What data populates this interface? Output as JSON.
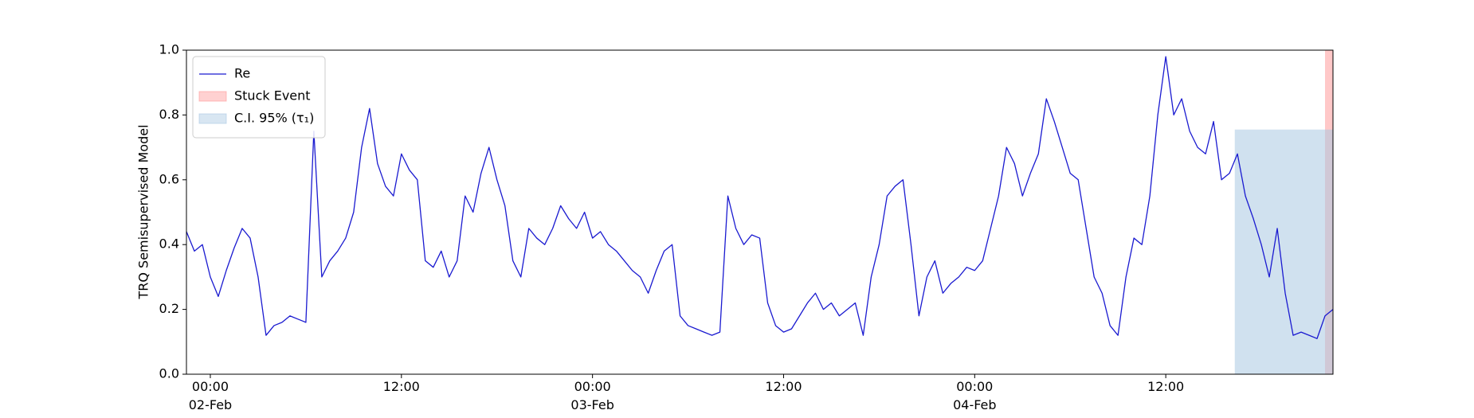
{
  "chart_data": {
    "type": "line",
    "y_label": "TRQ Semisupervised Model",
    "x": [
      "1900-02-01 22:30",
      "1900-02-01 23:00",
      "1900-02-01 23:30",
      "1900-02-02 00:00",
      "1900-02-02 00:30",
      "1900-02-02 01:00",
      "1900-02-02 01:30",
      "1900-02-02 02:00",
      "1900-02-02 02:30",
      "1900-02-02 03:00",
      "1900-02-02 03:30",
      "1900-02-02 04:00",
      "1900-02-02 04:30",
      "1900-02-02 05:00",
      "1900-02-02 05:30",
      "1900-02-02 06:00",
      "1900-02-02 06:30",
      "1900-02-02 07:00",
      "1900-02-02 07:30",
      "1900-02-02 08:00",
      "1900-02-02 08:30",
      "1900-02-02 09:00",
      "1900-02-02 09:30",
      "1900-02-02 10:00",
      "1900-02-02 10:30",
      "1900-02-02 11:00",
      "1900-02-02 11:30",
      "1900-02-02 12:00",
      "1900-02-02 12:30",
      "1900-02-02 13:00",
      "1900-02-02 13:30",
      "1900-02-02 14:00",
      "1900-02-02 14:30",
      "1900-02-02 15:00",
      "1900-02-02 15:30",
      "1900-02-02 16:00",
      "1900-02-02 16:30",
      "1900-02-02 17:00",
      "1900-02-02 17:30",
      "1900-02-02 18:00",
      "1900-02-02 18:30",
      "1900-02-02 19:00",
      "1900-02-02 19:30",
      "1900-02-02 20:00",
      "1900-02-02 20:30",
      "1900-02-02 21:00",
      "1900-02-02 21:30",
      "1900-02-02 22:00",
      "1900-02-02 22:30",
      "1900-02-02 23:00",
      "1900-02-02 23:30",
      "1900-02-03 00:00",
      "1900-02-03 00:30",
      "1900-02-03 01:00",
      "1900-02-03 01:30",
      "1900-02-03 02:00",
      "1900-02-03 02:30",
      "1900-02-03 03:00",
      "1900-02-03 03:30",
      "1900-02-03 04:00",
      "1900-02-03 04:30",
      "1900-02-03 05:00",
      "1900-02-03 05:30",
      "1900-02-03 06:00",
      "1900-02-03 06:30",
      "1900-02-03 07:00",
      "1900-02-03 07:30",
      "1900-02-03 08:00",
      "1900-02-03 08:30",
      "1900-02-03 09:00",
      "1900-02-03 09:30",
      "1900-02-03 10:00",
      "1900-02-03 10:30",
      "1900-02-03 11:00",
      "1900-02-03 11:30",
      "1900-02-03 12:00",
      "1900-02-03 12:30",
      "1900-02-03 13:00",
      "1900-02-03 13:30",
      "1900-02-03 14:00",
      "1900-02-03 14:30",
      "1900-02-03 15:00",
      "1900-02-03 15:30",
      "1900-02-03 16:00",
      "1900-02-03 16:30",
      "1900-02-03 17:00",
      "1900-02-03 17:30",
      "1900-02-03 18:00",
      "1900-02-03 18:30",
      "1900-02-03 19:00",
      "1900-02-03 19:30",
      "1900-02-03 20:00",
      "1900-02-03 20:30",
      "1900-02-03 21:00",
      "1900-02-03 21:30",
      "1900-02-03 22:00",
      "1900-02-03 22:30",
      "1900-02-03 23:00",
      "1900-02-03 23:30",
      "1900-02-04 00:00",
      "1900-02-04 00:30",
      "1900-02-04 01:00",
      "1900-02-04 01:30",
      "1900-02-04 02:00",
      "1900-02-04 02:30",
      "1900-02-04 03:00",
      "1900-02-04 03:30",
      "1900-02-04 04:00",
      "1900-02-04 04:30",
      "1900-02-04 05:00",
      "1900-02-04 05:30",
      "1900-02-04 06:00",
      "1900-02-04 06:30",
      "1900-02-04 07:00",
      "1900-02-04 07:30",
      "1900-02-04 08:00",
      "1900-02-04 08:30",
      "1900-02-04 09:00",
      "1900-02-04 09:30",
      "1900-02-04 10:00",
      "1900-02-04 10:30",
      "1900-02-04 11:00",
      "1900-02-04 11:30",
      "1900-02-04 12:00",
      "1900-02-04 12:30",
      "1900-02-04 13:00",
      "1900-02-04 13:30",
      "1900-02-04 14:00",
      "1900-02-04 14:30",
      "1900-02-04 15:00",
      "1900-02-04 15:30",
      "1900-02-04 16:00",
      "1900-02-04 16:30",
      "1900-02-04 17:00",
      "1900-02-04 17:30",
      "1900-02-04 18:00",
      "1900-02-04 18:30",
      "1900-02-04 19:00",
      "1900-02-04 19:30",
      "1900-02-04 20:00",
      "1900-02-04 20:30",
      "1900-02-04 21:00",
      "1900-02-04 21:30",
      "1900-02-04 22:00",
      "1900-02-04 22:30"
    ],
    "series": [
      {
        "name": "Re",
        "color": "#1a1ad0",
        "values": [
          0.44,
          0.38,
          0.4,
          0.3,
          0.24,
          0.32,
          0.39,
          0.45,
          0.42,
          0.3,
          0.12,
          0.15,
          0.16,
          0.18,
          0.17,
          0.16,
          0.75,
          0.3,
          0.35,
          0.38,
          0.42,
          0.5,
          0.7,
          0.82,
          0.65,
          0.58,
          0.55,
          0.68,
          0.63,
          0.6,
          0.35,
          0.33,
          0.38,
          0.3,
          0.35,
          0.55,
          0.5,
          0.62,
          0.7,
          0.6,
          0.52,
          0.35,
          0.3,
          0.45,
          0.42,
          0.4,
          0.45,
          0.52,
          0.48,
          0.45,
          0.5,
          0.42,
          0.44,
          0.4,
          0.38,
          0.35,
          0.32,
          0.3,
          0.25,
          0.32,
          0.38,
          0.4,
          0.18,
          0.15,
          0.14,
          0.13,
          0.12,
          0.13,
          0.55,
          0.45,
          0.4,
          0.43,
          0.42,
          0.22,
          0.15,
          0.13,
          0.14,
          0.18,
          0.22,
          0.25,
          0.2,
          0.22,
          0.18,
          0.2,
          0.22,
          0.12,
          0.3,
          0.4,
          0.55,
          0.58,
          0.6,
          0.4,
          0.18,
          0.3,
          0.35,
          0.25,
          0.28,
          0.3,
          0.33,
          0.32,
          0.35,
          0.45,
          0.55,
          0.7,
          0.65,
          0.55,
          0.62,
          0.68,
          0.85,
          0.78,
          0.7,
          0.62,
          0.6,
          0.45,
          0.3,
          0.25,
          0.15,
          0.12,
          0.3,
          0.42,
          0.4,
          0.55,
          0.8,
          0.98,
          0.8,
          0.85,
          0.75,
          0.7,
          0.68,
          0.78,
          0.6,
          0.62,
          0.68,
          0.55,
          0.48,
          0.4,
          0.3,
          0.45,
          0.25,
          0.12,
          0.13,
          0.12,
          0.11,
          0.18,
          0.2
        ]
      }
    ],
    "spans": [
      {
        "name": "Stuck Event",
        "color": "#ff9a9a",
        "x": [
          "1900-02-04 22:00",
          "1900-02-04 22:30"
        ],
        "y": [
          0,
          1
        ]
      },
      {
        "name": "C.I. 95% (τ₁)",
        "color": "#a9c8e2",
        "x": [
          "1900-02-04 16:20",
          "1900-02-04 22:30"
        ],
        "y": [
          0,
          0.755
        ]
      }
    ],
    "xlim": [
      "1900-02-01 22:30",
      "1900-02-04 22:30"
    ],
    "xticks": [
      {
        "value": "1900-02-02 00:00",
        "label": "00:00\n02-Feb\n1900"
      },
      {
        "value": "1900-02-02 12:00",
        "label": "12:00"
      },
      {
        "value": "1900-02-03 00:00",
        "label": "00:00\n03-Feb"
      },
      {
        "value": "1900-02-03 12:00",
        "label": "12:00"
      },
      {
        "value": "1900-02-04 00:00",
        "label": "00:00\n04-Feb"
      },
      {
        "value": "1900-02-04 12:00",
        "label": "12:00"
      }
    ],
    "ylim": [
      0,
      1
    ],
    "yticks": [
      {
        "value": 0,
        "label": "0.0"
      },
      0.2,
      0.4,
      0.6,
      0.8,
      {
        "value": 1,
        "label": "1.0"
      }
    ],
    "legend": "upper left"
  }
}
